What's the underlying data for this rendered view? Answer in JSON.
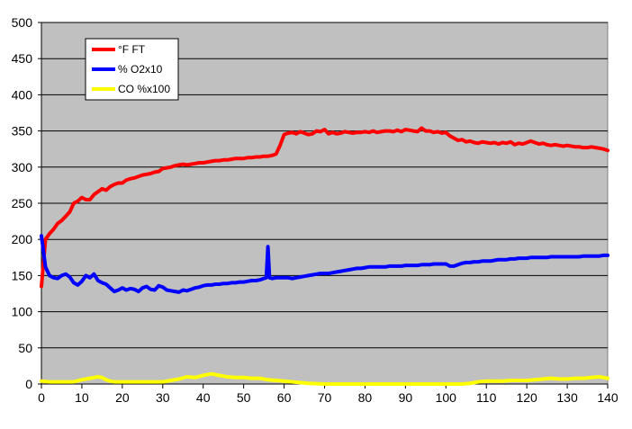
{
  "chart_data": {
    "type": "line",
    "title": "",
    "xlabel": "",
    "ylabel": "",
    "xlim": [
      0,
      140
    ],
    "ylim": [
      0,
      500
    ],
    "x_ticks": [
      0,
      10,
      20,
      30,
      40,
      50,
      60,
      70,
      80,
      90,
      100,
      110,
      120,
      130,
      140
    ],
    "y_ticks": [
      0,
      50,
      100,
      150,
      200,
      250,
      300,
      350,
      400,
      450,
      500
    ],
    "grid": "horizontal",
    "legend_position": "top-left",
    "plot_background": "#c0c0c0",
    "series": [
      {
        "name": "°F FT",
        "color": "#ff0000",
        "x": [
          0,
          1,
          2,
          3,
          4,
          5,
          6,
          7,
          8,
          9,
          10,
          11,
          12,
          13,
          14,
          15,
          16,
          17,
          18,
          19,
          20,
          21,
          22,
          23,
          24,
          25,
          26,
          27,
          28,
          29,
          30,
          31,
          32,
          33,
          34,
          35,
          36,
          37,
          38,
          39,
          40,
          41,
          42,
          43,
          44,
          45,
          46,
          47,
          48,
          49,
          50,
          51,
          52,
          53,
          54,
          55,
          56,
          57,
          58,
          59,
          60,
          61,
          62,
          63,
          64,
          65,
          66,
          67,
          68,
          69,
          70,
          71,
          72,
          73,
          74,
          75,
          76,
          77,
          78,
          79,
          80,
          81,
          82,
          83,
          84,
          85,
          86,
          87,
          88,
          89,
          90,
          91,
          92,
          93,
          94,
          95,
          96,
          97,
          98,
          99,
          100,
          101,
          102,
          103,
          104,
          105,
          106,
          107,
          108,
          109,
          110,
          111,
          112,
          113,
          114,
          115,
          116,
          117,
          118,
          119,
          120,
          121,
          122,
          123,
          124,
          125,
          126,
          127,
          128,
          129,
          130,
          131,
          132,
          133,
          134,
          135,
          136,
          137,
          138,
          139,
          140
        ],
        "values": [
          135,
          200,
          208,
          214,
          222,
          226,
          232,
          238,
          250,
          253,
          258,
          255,
          255,
          262,
          266,
          270,
          268,
          273,
          276,
          278,
          278,
          282,
          284,
          285,
          287,
          289,
          290,
          291,
          293,
          294,
          298,
          299,
          300,
          302,
          303,
          304,
          303,
          304,
          305,
          306,
          306,
          307,
          308,
          309,
          309,
          310,
          310,
          311,
          312,
          312,
          312,
          313,
          313,
          314,
          314,
          315,
          315,
          316,
          318,
          330,
          345,
          347,
          348,
          346,
          349,
          347,
          345,
          346,
          350,
          349,
          352,
          346,
          348,
          346,
          347,
          349,
          348,
          347,
          348,
          348,
          349,
          348,
          350,
          348,
          349,
          350,
          350,
          349,
          351,
          349,
          352,
          351,
          350,
          349,
          354,
          350,
          350,
          348,
          349,
          347,
          348,
          343,
          340,
          337,
          338,
          335,
          336,
          334,
          333,
          335,
          334,
          333,
          334,
          332,
          334,
          333,
          335,
          331,
          333,
          332,
          334,
          336,
          334,
          332,
          333,
          331,
          330,
          331,
          330,
          329,
          330,
          329,
          328,
          328,
          327,
          327,
          328,
          327,
          326,
          325,
          323
        ]
      },
      {
        "name": "% O2x10",
        "color": "#0000ff",
        "x": [
          0,
          1,
          2,
          3,
          4,
          5,
          6,
          7,
          8,
          9,
          10,
          11,
          12,
          13,
          14,
          15,
          16,
          17,
          18,
          19,
          20,
          21,
          22,
          23,
          24,
          25,
          26,
          27,
          28,
          29,
          30,
          31,
          32,
          33,
          34,
          35,
          36,
          37,
          38,
          39,
          40,
          41,
          42,
          43,
          44,
          45,
          46,
          47,
          48,
          49,
          50,
          51,
          52,
          53,
          54,
          55,
          55.6,
          56,
          56.4,
          57,
          58,
          59,
          60,
          61,
          62,
          63,
          64,
          65,
          66,
          67,
          68,
          69,
          70,
          71,
          72,
          73,
          74,
          75,
          76,
          77,
          78,
          79,
          80,
          81,
          82,
          83,
          84,
          85,
          86,
          87,
          88,
          89,
          90,
          91,
          92,
          93,
          94,
          95,
          96,
          97,
          98,
          99,
          100,
          101,
          102,
          103,
          104,
          105,
          106,
          107,
          108,
          109,
          110,
          111,
          112,
          113,
          114,
          115,
          116,
          117,
          118,
          119,
          120,
          121,
          122,
          123,
          124,
          125,
          126,
          127,
          128,
          129,
          130,
          131,
          132,
          133,
          134,
          135,
          136,
          137,
          138,
          139,
          140
        ],
        "values": [
          205,
          162,
          150,
          147,
          146,
          150,
          152,
          148,
          140,
          137,
          142,
          150,
          147,
          152,
          143,
          140,
          138,
          133,
          128,
          130,
          133,
          130,
          132,
          131,
          128,
          133,
          135,
          131,
          130,
          136,
          134,
          130,
          129,
          128,
          127,
          130,
          129,
          131,
          133,
          134,
          136,
          137,
          137,
          138,
          138,
          139,
          139,
          140,
          140,
          141,
          141,
          142,
          143,
          143,
          144,
          146,
          147,
          190,
          147,
          146,
          147,
          147,
          147,
          147,
          146,
          147,
          148,
          149,
          150,
          151,
          152,
          153,
          153,
          153,
          154,
          155,
          156,
          157,
          158,
          159,
          160,
          160,
          161,
          162,
          162,
          162,
          162,
          162,
          163,
          163,
          163,
          163,
          164,
          164,
          164,
          164,
          165,
          165,
          165,
          166,
          166,
          166,
          166,
          163,
          163,
          165,
          167,
          168,
          168,
          169,
          169,
          170,
          170,
          170,
          171,
          172,
          172,
          172,
          173,
          173,
          174,
          174,
          174,
          175,
          175,
          175,
          175,
          175,
          176,
          176,
          176,
          176,
          176,
          176,
          176,
          176,
          177,
          177,
          177,
          177,
          177,
          178,
          178
        ]
      },
      {
        "name": "CO %x100",
        "color": "#ffff00",
        "x": [
          0,
          2,
          4,
          6,
          8,
          10,
          12,
          14,
          15,
          16,
          17,
          18,
          20,
          22,
          24,
          26,
          28,
          30,
          32,
          34,
          36,
          38,
          40,
          42,
          43,
          44,
          46,
          48,
          50,
          52,
          54,
          56,
          58,
          60,
          62,
          64,
          66,
          70,
          80,
          90,
          100,
          104,
          106,
          108,
          110,
          112,
          114,
          116,
          118,
          120,
          122,
          124,
          126,
          128,
          130,
          132,
          134,
          136,
          138,
          140
        ],
        "values": [
          4,
          3,
          3,
          3,
          3,
          6,
          8,
          10,
          9,
          6,
          4,
          3,
          3,
          3,
          3,
          3,
          3,
          3,
          5,
          7,
          10,
          9,
          12,
          14,
          13,
          12,
          10,
          9,
          9,
          8,
          8,
          6,
          5,
          4,
          3,
          2,
          1,
          0,
          0,
          0,
          0,
          0,
          1,
          3,
          4,
          4,
          4,
          5,
          5,
          5,
          6,
          7,
          8,
          7,
          7,
          8,
          8,
          9,
          10,
          8
        ]
      }
    ]
  }
}
